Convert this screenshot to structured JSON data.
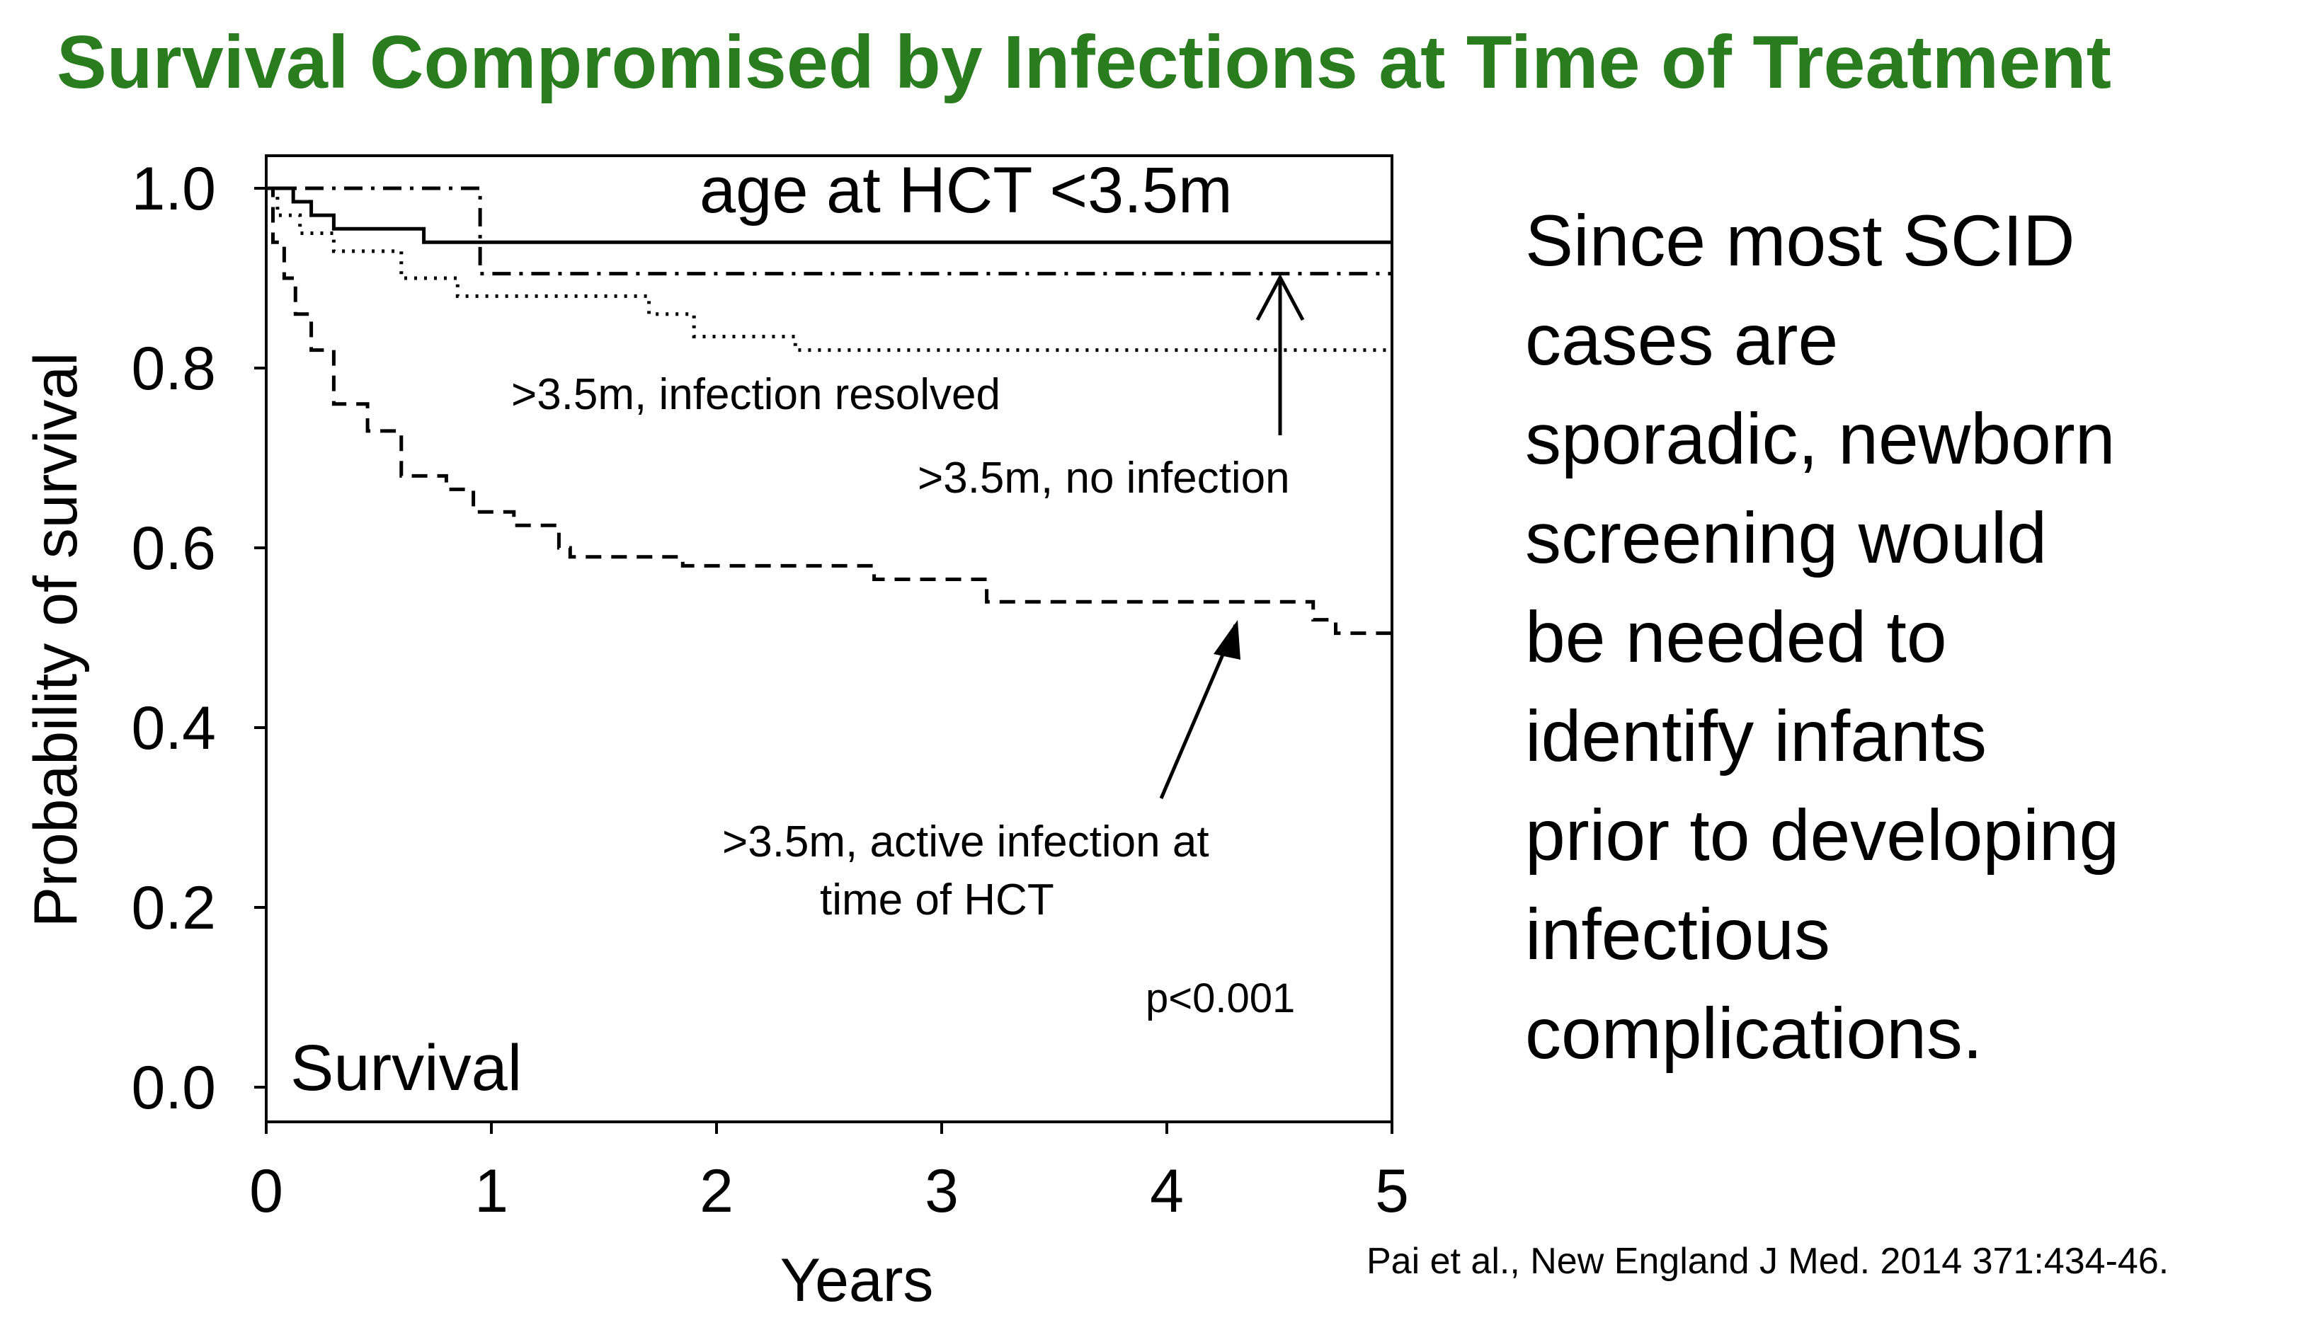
{
  "slide": {
    "title": "Survival Compromised by Infections at Time of Treatment",
    "side_text_lines": [
      "Since most SCID",
      "cases are",
      "sporadic, newborn",
      "screening would",
      "be needed to",
      "identify infants",
      "prior to developing",
      "infectious",
      "complications."
    ],
    "citation": "Pai et al., New England J Med. 2014 371:434-46.",
    "title_color": "#2a7d1f"
  },
  "chart_data": {
    "type": "line",
    "step": true,
    "title": "Survival",
    "xlabel": "Years",
    "ylabel": "Probability of survival",
    "xlim": [
      0,
      5
    ],
    "ylim": [
      0,
      1
    ],
    "x_ticks": [
      "0",
      "1",
      "2",
      "3",
      "4",
      "5"
    ],
    "y_ticks": [
      "0.0",
      "0.2",
      "0.4",
      "0.6",
      "0.8",
      "1.0"
    ],
    "x_tick_values": [
      0,
      1,
      2,
      3,
      4,
      5
    ],
    "y_tick_values": [
      0,
      0.2,
      0.4,
      0.6,
      0.8,
      1.0
    ],
    "pvalue": "p<0.001",
    "series": [
      {
        "name": "age at HCT <3.5m",
        "style": "solid",
        "points": [
          [
            0,
            1.0
          ],
          [
            0.12,
            1.0
          ],
          [
            0.12,
            0.985
          ],
          [
            0.2,
            0.985
          ],
          [
            0.2,
            0.97
          ],
          [
            0.3,
            0.97
          ],
          [
            0.3,
            0.955
          ],
          [
            0.7,
            0.955
          ],
          [
            0.7,
            0.94
          ],
          [
            5,
            0.94
          ]
        ]
      },
      {
        "name": ">3.5m, no infection",
        "style": "dashdot",
        "points": [
          [
            0,
            1.0
          ],
          [
            0.95,
            1.0
          ],
          [
            0.95,
            0.905
          ],
          [
            5,
            0.905
          ]
        ]
      },
      {
        "name": ">3.5m, infection resolved",
        "style": "dotted",
        "points": [
          [
            0,
            1.0
          ],
          [
            0.05,
            1.0
          ],
          [
            0.05,
            0.97
          ],
          [
            0.15,
            0.97
          ],
          [
            0.15,
            0.95
          ],
          [
            0.3,
            0.95
          ],
          [
            0.3,
            0.93
          ],
          [
            0.6,
            0.93
          ],
          [
            0.6,
            0.9
          ],
          [
            0.85,
            0.9
          ],
          [
            0.85,
            0.88
          ],
          [
            1.7,
            0.88
          ],
          [
            1.7,
            0.86
          ],
          [
            1.9,
            0.86
          ],
          [
            1.9,
            0.835
          ],
          [
            2.35,
            0.835
          ],
          [
            2.35,
            0.82
          ],
          [
            5,
            0.82
          ]
        ]
      },
      {
        "name": ">3.5m, active infection at time of HCT",
        "style": "dashed",
        "points": [
          [
            0,
            1.0
          ],
          [
            0.03,
            1.0
          ],
          [
            0.03,
            0.94
          ],
          [
            0.08,
            0.94
          ],
          [
            0.08,
            0.9
          ],
          [
            0.13,
            0.9
          ],
          [
            0.13,
            0.86
          ],
          [
            0.2,
            0.86
          ],
          [
            0.2,
            0.82
          ],
          [
            0.3,
            0.82
          ],
          [
            0.3,
            0.76
          ],
          [
            0.45,
            0.76
          ],
          [
            0.45,
            0.73
          ],
          [
            0.6,
            0.73
          ],
          [
            0.6,
            0.68
          ],
          [
            0.8,
            0.68
          ],
          [
            0.8,
            0.665
          ],
          [
            0.92,
            0.665
          ],
          [
            0.92,
            0.64
          ],
          [
            1.1,
            0.64
          ],
          [
            1.1,
            0.625
          ],
          [
            1.3,
            0.625
          ],
          [
            1.3,
            0.6
          ],
          [
            1.35,
            0.6
          ],
          [
            1.35,
            0.59
          ],
          [
            1.85,
            0.59
          ],
          [
            1.85,
            0.58
          ],
          [
            2.7,
            0.58
          ],
          [
            2.7,
            0.565
          ],
          [
            3.2,
            0.565
          ],
          [
            3.2,
            0.54
          ],
          [
            4.65,
            0.54
          ],
          [
            4.65,
            0.52
          ],
          [
            4.75,
            0.52
          ],
          [
            4.75,
            0.505
          ],
          [
            5,
            0.505
          ]
        ]
      }
    ],
    "annotations": [
      {
        "text": "age at HCT <3.5m"
      },
      {
        "text": ">3.5m, infection resolved"
      },
      {
        "text": ">3.5m, no infection"
      },
      {
        "text": ">3.5m, active infection at"
      },
      {
        "text": "time of HCT"
      }
    ]
  }
}
